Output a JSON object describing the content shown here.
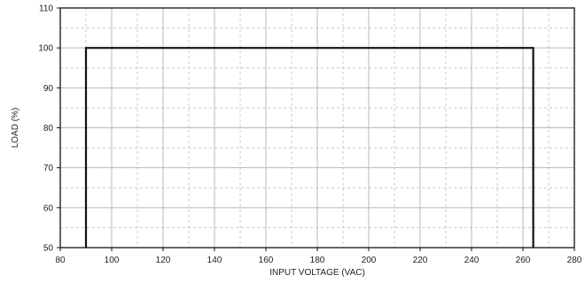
{
  "chart_data": {
    "type": "line",
    "title": "",
    "xlabel": "INPUT VOLTAGE (VAC)",
    "ylabel": "LOAD (%)",
    "xlim": [
      80,
      280
    ],
    "ylim": [
      50,
      110
    ],
    "x_ticks": [
      80,
      100,
      120,
      140,
      160,
      180,
      200,
      220,
      240,
      260,
      280
    ],
    "y_ticks": [
      50,
      60,
      70,
      80,
      90,
      100,
      110
    ],
    "x_minor_step": 10,
    "y_minor_step": 5,
    "grid": true,
    "legend": "none",
    "series": [
      {
        "x": [
          90,
          90,
          264,
          264
        ],
        "y": [
          50,
          100,
          100,
          50
        ]
      }
    ],
    "colors": {
      "series": "#111111",
      "grid_major": "#b8b8b8",
      "grid_minor": "#c8c8c8",
      "frame": "#111111"
    }
  }
}
